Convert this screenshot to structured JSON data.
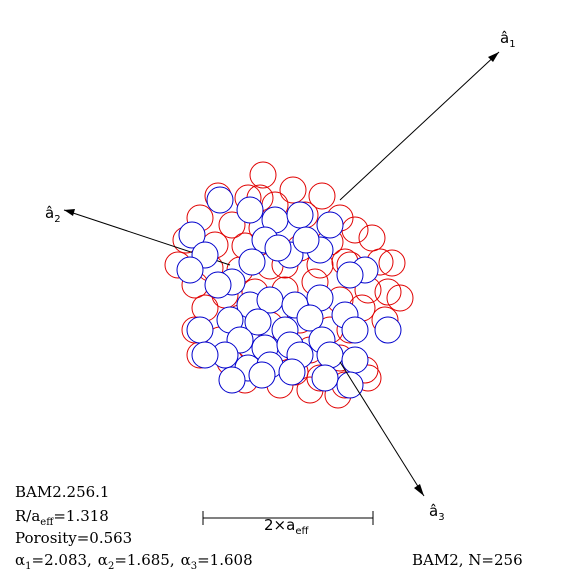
{
  "figure": {
    "axes": {
      "a1": {
        "hat": "â",
        "sub": "1"
      },
      "a2": {
        "hat": "â",
        "sub": "2"
      },
      "a3": {
        "hat": "â",
        "sub": "3"
      }
    },
    "scale_bar": {
      "prefix": "2×a",
      "sub": "eff"
    },
    "info": {
      "id": "BAM2.256.1",
      "ratio_prefix": "R/a",
      "ratio_sub": "eff",
      "ratio_value": "=1.318",
      "porosity": "Porosity=0.563",
      "alpha1_prefix": "α",
      "alpha1_sub": "1",
      "alpha1_value": "=2.083,",
      "alpha2_prefix": "α",
      "alpha2_sub": "2",
      "alpha2_value": "=1.685,",
      "alpha3_prefix": "α",
      "alpha3_sub": "3",
      "alpha3_value": "=1.608"
    },
    "footer": "BAM2, N=256",
    "colors": {
      "front": "#0000cc",
      "back": "#e00000",
      "line": "#000000"
    }
  }
}
